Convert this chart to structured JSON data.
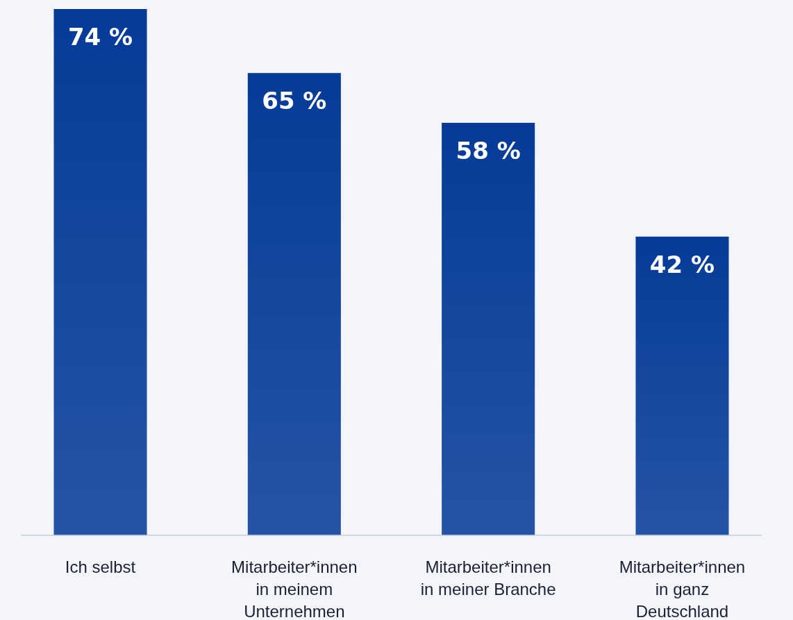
{
  "chart_data": {
    "type": "bar",
    "categories": [
      "Ich selbst",
      "Mitarbeiter*innen in meinem Unternehmen",
      "Mitarbeiter*innen in meiner Branche",
      "Mitarbeiter*innen in ganz Deutschland"
    ],
    "values": [
      74,
      65,
      58,
      42
    ],
    "value_labels": [
      "74 %",
      "65 %",
      "58 %",
      "42 %"
    ],
    "color": "#053b97"
  }
}
